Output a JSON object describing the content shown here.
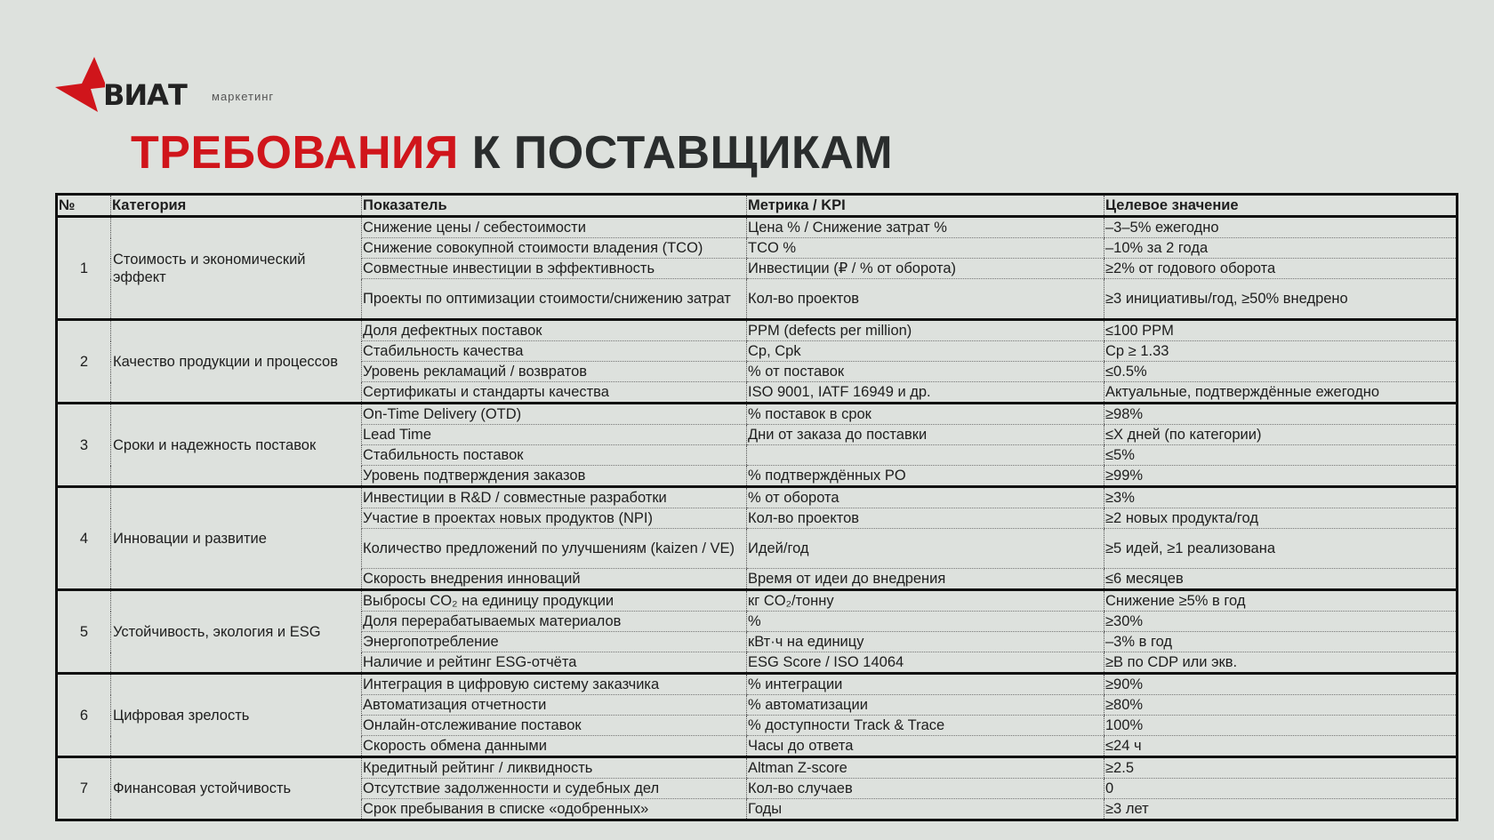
{
  "logo": {
    "brand": "ВИАТ",
    "sub": "маркетинг",
    "accent": "#d0151b"
  },
  "title": {
    "part1": "ТРЕБОВАНИЯ",
    "part2": "К ПОСТАВЩИКАМ",
    "accent": "#d0151b"
  },
  "table": {
    "headers": [
      "№",
      "Категория",
      "Показатель",
      "Метрика / KPI",
      "Целевое значение"
    ],
    "groups": [
      {
        "num": "1",
        "category": "Стоимость и экономический эффект",
        "rows": [
          [
            "Снижение цены / себестоимости",
            "Цена % / Снижение затрат %",
            "–3–5% ежегодно"
          ],
          [
            "Снижение совокупной стоимости владения (TCO)",
            "TCO %",
            "–10% за 2 года"
          ],
          [
            "Совместные инвестиции в эффективность",
            "Инвестиции (₽ / % от оборота)",
            "≥2% от годового оборота"
          ],
          [
            "Проекты по оптимизации стоимости/снижению затрат",
            "Кол-во проектов",
            "≥3 инициативы/год, ≥50% внедрено"
          ]
        ]
      },
      {
        "num": "2",
        "category": "Качество продукции и процессов",
        "rows": [
          [
            "Доля дефектных поставок",
            "PPM (defects per million)",
            "≤100 PPM"
          ],
          [
            "Стабильность качества",
            "Cp, Cpk",
            "Cp ≥ 1.33"
          ],
          [
            "Уровень рекламаций / возвратов",
            "% от поставок",
            "≤0.5%"
          ],
          [
            "Сертификаты и стандарты качества",
            "ISO 9001, IATF 16949 и др.",
            "Актуальные, подтверждённые ежегодно"
          ]
        ]
      },
      {
        "num": "3",
        "category": "Сроки и надежность поставок",
        "rows": [
          [
            "On-Time Delivery (OTD)",
            "% поставок в срок",
            "≥98%"
          ],
          [
            "Lead Time",
            "Дни от заказа до поставки",
            "≤X дней (по категории)"
          ],
          [
            "Стабильность поставок",
            "",
            "≤5%"
          ],
          [
            "Уровень подтверждения заказов",
            "% подтверждённых PO",
            "≥99%"
          ]
        ]
      },
      {
        "num": "4",
        "category": "Инновации и развитие",
        "rows": [
          [
            "Инвестиции в R&D / совместные разработки",
            "% от оборота",
            "≥3%"
          ],
          [
            "Участие в проектах новых продуктов (NPI)",
            "Кол-во проектов",
            "≥2 новых продукта/год"
          ],
          [
            "Количество предложений по улучшениям (kaizen / VE)",
            "Идей/год",
            "≥5 идей, ≥1 реализована"
          ],
          [
            "Скорость внедрения инноваций",
            "Время от идеи до внедрения",
            "≤6 месяцев"
          ]
        ]
      },
      {
        "num": "5",
        "category": "Устойчивость, экология и ESG",
        "rows": [
          [
            "Выбросы CO₂ на единицу продукции",
            "кг CO₂/тонну",
            "Снижение ≥5% в год"
          ],
          [
            "Доля перерабатываемых материалов",
            "%",
            "≥30%"
          ],
          [
            "Энергопотребление",
            "кВт·ч на единицу",
            "–3% в год"
          ],
          [
            "Наличие и рейтинг ESG-отчёта",
            "ESG Score / ISO 14064",
            "≥B по CDP или экв."
          ]
        ]
      },
      {
        "num": "6",
        "category": "Цифровая зрелость",
        "rows": [
          [
            "Интеграция в цифровую систему заказчика",
            "% интеграции",
            "≥90%"
          ],
          [
            "Автоматизация отчетности",
            "% автоматизации",
            "≥80%"
          ],
          [
            "Онлайн-отслеживание поставок",
            "% доступности Track & Trace",
            "100%"
          ],
          [
            "Скорость обмена данными",
            "Часы до ответа",
            "≤24 ч"
          ]
        ]
      },
      {
        "num": "7",
        "category": "Финансовая устойчивость",
        "rows": [
          [
            "Кредитный рейтинг / ликвидность",
            "Altman Z-score",
            "≥2.5"
          ],
          [
            "Отсутствие задолженности и судебных дел",
            "Кол-во случаев",
            "0"
          ],
          [
            "Срок пребывания в списке «одобренных»",
            "Годы",
            "≥3 лет"
          ]
        ]
      }
    ]
  }
}
